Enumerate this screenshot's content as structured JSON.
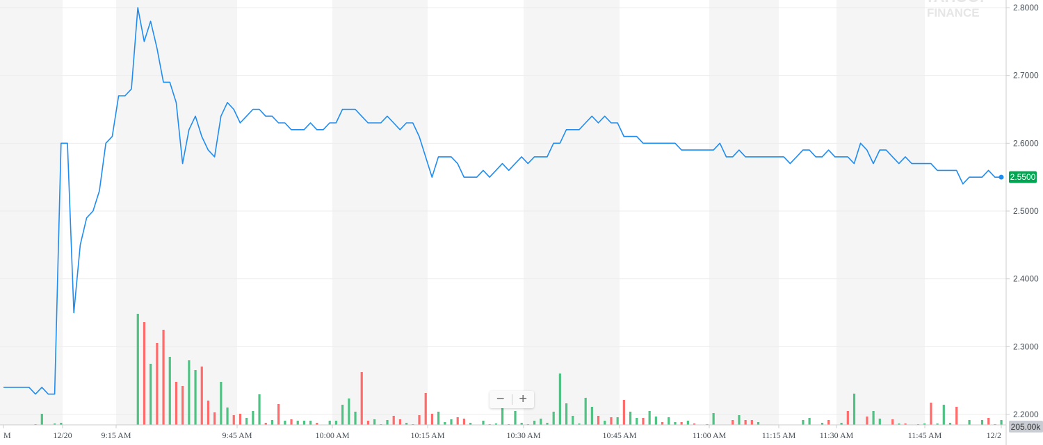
{
  "watermark": "YAHOO! FINANCE",
  "chart_data": {
    "type": "line",
    "title": "",
    "xlabel": "",
    "ylabel": "",
    "ylim": [
      2.2,
      2.8
    ],
    "y_ticks": [
      "2.8000",
      "2.7000",
      "2.6000",
      "2.5000",
      "2.4000",
      "2.3000",
      "2.2000"
    ],
    "x_ticks": [
      "M",
      "12/20",
      "9:15 AM",
      "9:45 AM",
      "10:00 AM",
      "10:15 AM",
      "10:30 AM",
      "10:45 AM",
      "11:00 AM",
      "11:15 AM",
      "11:30 AM",
      "11:45 AM",
      "12/2"
    ],
    "grid": true,
    "line_color": "#1e8cf0",
    "up_color": "#4fc283",
    "down_color": "#ff6b6b",
    "last_price_label": "2.5500",
    "last_price_color": "#00a651",
    "volume_label": "205.00k",
    "price": [
      2.24,
      2.24,
      2.24,
      2.24,
      2.24,
      2.23,
      2.24,
      2.23,
      2.23,
      2.6,
      2.6,
      2.35,
      2.45,
      2.49,
      2.5,
      2.53,
      2.6,
      2.61,
      2.67,
      2.67,
      2.68,
      2.8,
      2.75,
      2.78,
      2.74,
      2.69,
      2.69,
      2.66,
      2.57,
      2.62,
      2.64,
      2.61,
      2.59,
      2.58,
      2.64,
      2.66,
      2.65,
      2.63,
      2.64,
      2.65,
      2.65,
      2.64,
      2.64,
      2.63,
      2.63,
      2.62,
      2.62,
      2.62,
      2.63,
      2.62,
      2.62,
      2.63,
      2.63,
      2.65,
      2.65,
      2.65,
      2.64,
      2.63,
      2.63,
      2.63,
      2.64,
      2.63,
      2.62,
      2.63,
      2.63,
      2.61,
      2.58,
      2.55,
      2.58,
      2.58,
      2.58,
      2.57,
      2.55,
      2.55,
      2.55,
      2.56,
      2.55,
      2.56,
      2.57,
      2.56,
      2.57,
      2.58,
      2.57,
      2.58,
      2.58,
      2.58,
      2.6,
      2.6,
      2.62,
      2.62,
      2.62,
      2.63,
      2.64,
      2.63,
      2.64,
      2.63,
      2.63,
      2.61,
      2.61,
      2.61,
      2.6,
      2.6,
      2.6,
      2.6,
      2.6,
      2.6,
      2.59,
      2.59,
      2.59,
      2.59,
      2.59,
      2.59,
      2.6,
      2.58,
      2.58,
      2.59,
      2.58,
      2.58,
      2.58,
      2.58,
      2.58,
      2.58,
      2.58,
      2.57,
      2.58,
      2.59,
      2.59,
      2.58,
      2.58,
      2.59,
      2.58,
      2.58,
      2.58,
      2.57,
      2.6,
      2.59,
      2.57,
      2.59,
      2.59,
      2.58,
      2.57,
      2.58,
      2.57,
      2.57,
      2.57,
      2.57,
      2.56,
      2.56,
      2.56,
      2.56,
      2.54,
      2.55,
      2.55,
      2.55,
      2.56,
      2.55,
      2.55
    ],
    "volume_k": [
      0,
      0,
      0,
      0,
      0,
      15,
      240,
      0,
      30,
      45,
      0,
      0,
      0,
      0,
      0,
      0,
      0,
      0,
      0,
      0,
      0,
      2400,
      2220,
      1320,
      1770,
      2055,
      1470,
      930,
      840,
      1395,
      1185,
      1260,
      525,
      270,
      930,
      375,
      210,
      240,
      150,
      300,
      660,
      45,
      105,
      450,
      90,
      120,
      90,
      90,
      90,
      45,
      0,
      90,
      90,
      435,
      570,
      285,
      1140,
      90,
      120,
      15,
      105,
      195,
      120,
      45,
      15,
      210,
      690,
      240,
      285,
      60,
      120,
      165,
      135,
      45,
      0,
      90,
      15,
      30,
      360,
      15,
      300,
      45,
      15,
      90,
      135,
      45,
      285,
      1110,
      465,
      195,
      30,
      585,
      390,
      195,
      90,
      165,
      165,
      540,
      285,
      150,
      150,
      300,
      180,
      60,
      165,
      60,
      60,
      90,
      30,
      0,
      15,
      255,
      0,
      0,
      105,
      210,
      105,
      105,
      60,
      0,
      0,
      0,
      0,
      0,
      0,
      105,
      150,
      0,
      45,
      105,
      0,
      45,
      300,
      675,
      0,
      180,
      300,
      135,
      0,
      120,
      30,
      30,
      0,
      15,
      30,
      480,
      30,
      435,
      45,
      390,
      0,
      105,
      0,
      105,
      150,
      15,
      105
    ],
    "volume_dir": [
      "u",
      "u",
      "u",
      "u",
      "u",
      "d",
      "u",
      "u",
      "u",
      "u",
      "u",
      "u",
      "u",
      "u",
      "u",
      "u",
      "u",
      "u",
      "u",
      "u",
      "u",
      "u",
      "d",
      "u",
      "d",
      "d",
      "u",
      "d",
      "d",
      "u",
      "u",
      "d",
      "d",
      "d",
      "u",
      "u",
      "d",
      "d",
      "u",
      "u",
      "u",
      "d",
      "u",
      "d",
      "u",
      "d",
      "u",
      "u",
      "u",
      "d",
      "u",
      "u",
      "u",
      "u",
      "u",
      "u",
      "d",
      "d",
      "u",
      "u",
      "u",
      "d",
      "d",
      "u",
      "d",
      "d",
      "d",
      "d",
      "u",
      "u",
      "u",
      "d",
      "d",
      "u",
      "u",
      "u",
      "d",
      "u",
      "u",
      "d",
      "u",
      "u",
      "d",
      "u",
      "u",
      "u",
      "u",
      "u",
      "u",
      "u",
      "u",
      "u",
      "u",
      "d",
      "u",
      "d",
      "u",
      "d",
      "u",
      "u",
      "d",
      "u",
      "u",
      "d",
      "u",
      "u",
      "d",
      "u",
      "d",
      "u",
      "u",
      "u",
      "u",
      "u",
      "d",
      "u",
      "d",
      "d",
      "u",
      "u",
      "u",
      "u",
      "u",
      "u",
      "u",
      "u",
      "u",
      "u",
      "u",
      "d",
      "u",
      "u",
      "d",
      "u",
      "u",
      "d",
      "u",
      "u",
      "u",
      "d",
      "u",
      "d",
      "u",
      "u",
      "u",
      "d",
      "u",
      "u",
      "u",
      "d",
      "u",
      "u",
      "u",
      "u",
      "d",
      "u",
      "u"
    ]
  },
  "zoom_controls": {
    "minus": "−",
    "plus": "+"
  }
}
